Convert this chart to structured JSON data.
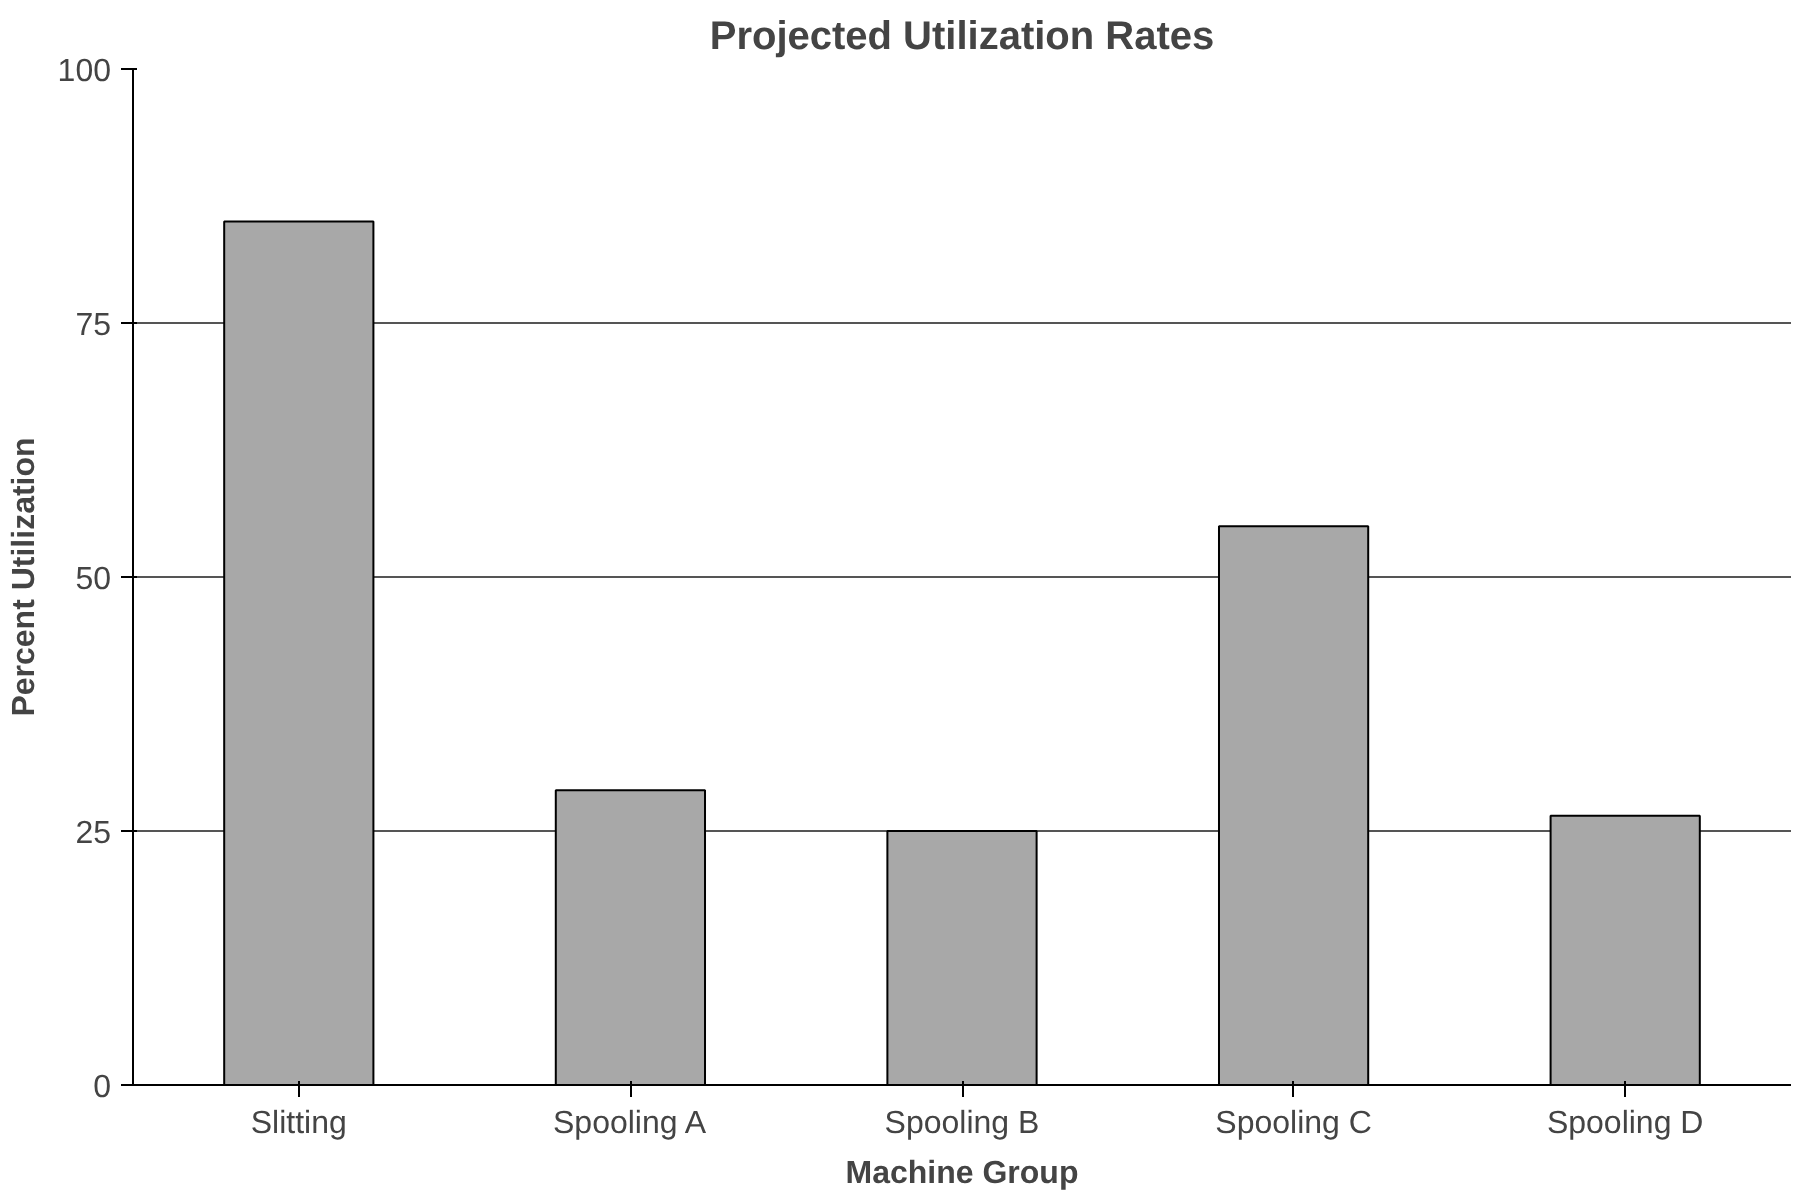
{
  "chart_data": {
    "type": "bar",
    "title": "Projected Utilization Rates",
    "xlabel": "Machine Group",
    "ylabel": "Percent Utilization",
    "categories": [
      "Slitting",
      "Spooling A",
      "Spooling B",
      "Spooling C",
      "Spooling D"
    ],
    "values": [
      85,
      29,
      25,
      55,
      26.5
    ],
    "color": "#a8a8a8",
    "ylim": [
      0,
      100
    ],
    "yticks": [
      0,
      25,
      50,
      75,
      100
    ],
    "grid": "y"
  }
}
